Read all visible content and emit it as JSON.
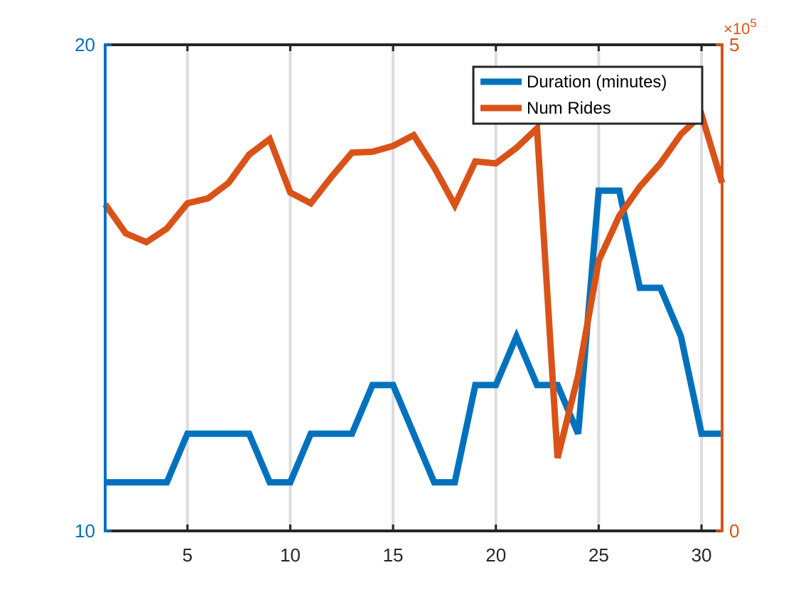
{
  "chart_data": {
    "type": "line",
    "x": [
      1,
      2,
      3,
      4,
      5,
      6,
      7,
      8,
      9,
      10,
      11,
      12,
      13,
      14,
      15,
      16,
      17,
      18,
      19,
      20,
      21,
      22,
      23,
      24,
      25,
      26,
      27,
      28,
      29,
      30,
      31
    ],
    "xlim": [
      1,
      31
    ],
    "xticks": [
      5,
      10,
      15,
      20,
      25,
      30
    ],
    "grid_x": true,
    "legend_position": "top-right",
    "left_axis": {
      "ylim": [
        10,
        20
      ],
      "tick_labels": [
        "10",
        "20"
      ],
      "color": "#0072BD"
    },
    "right_axis": {
      "ylim": [
        0,
        500000
      ],
      "tick_labels": [
        "0",
        "5"
      ],
      "exponent_base": "×10",
      "exponent_power": "5",
      "color": "#D95319"
    },
    "series": [
      {
        "name": "Duration (minutes)",
        "axis": "left",
        "color": "#0072BD",
        "values": [
          11,
          11,
          11,
          11,
          12,
          12,
          12,
          12,
          11,
          11,
          12,
          12,
          12,
          13,
          13,
          12,
          11,
          11,
          13,
          13,
          14,
          13,
          13,
          12,
          17,
          17,
          15,
          15,
          14,
          12,
          12
        ]
      },
      {
        "name": "Num Rides",
        "axis": "right",
        "color": "#D95319",
        "values": [
          336000,
          306000,
          297000,
          311000,
          337000,
          342000,
          358000,
          387000,
          403000,
          348000,
          337000,
          364000,
          389000,
          390000,
          396000,
          407000,
          374000,
          335000,
          380000,
          378000,
          394000,
          414000,
          75000,
          160000,
          278000,
          324000,
          354000,
          378000,
          408000,
          428000,
          358000
        ]
      }
    ]
  }
}
